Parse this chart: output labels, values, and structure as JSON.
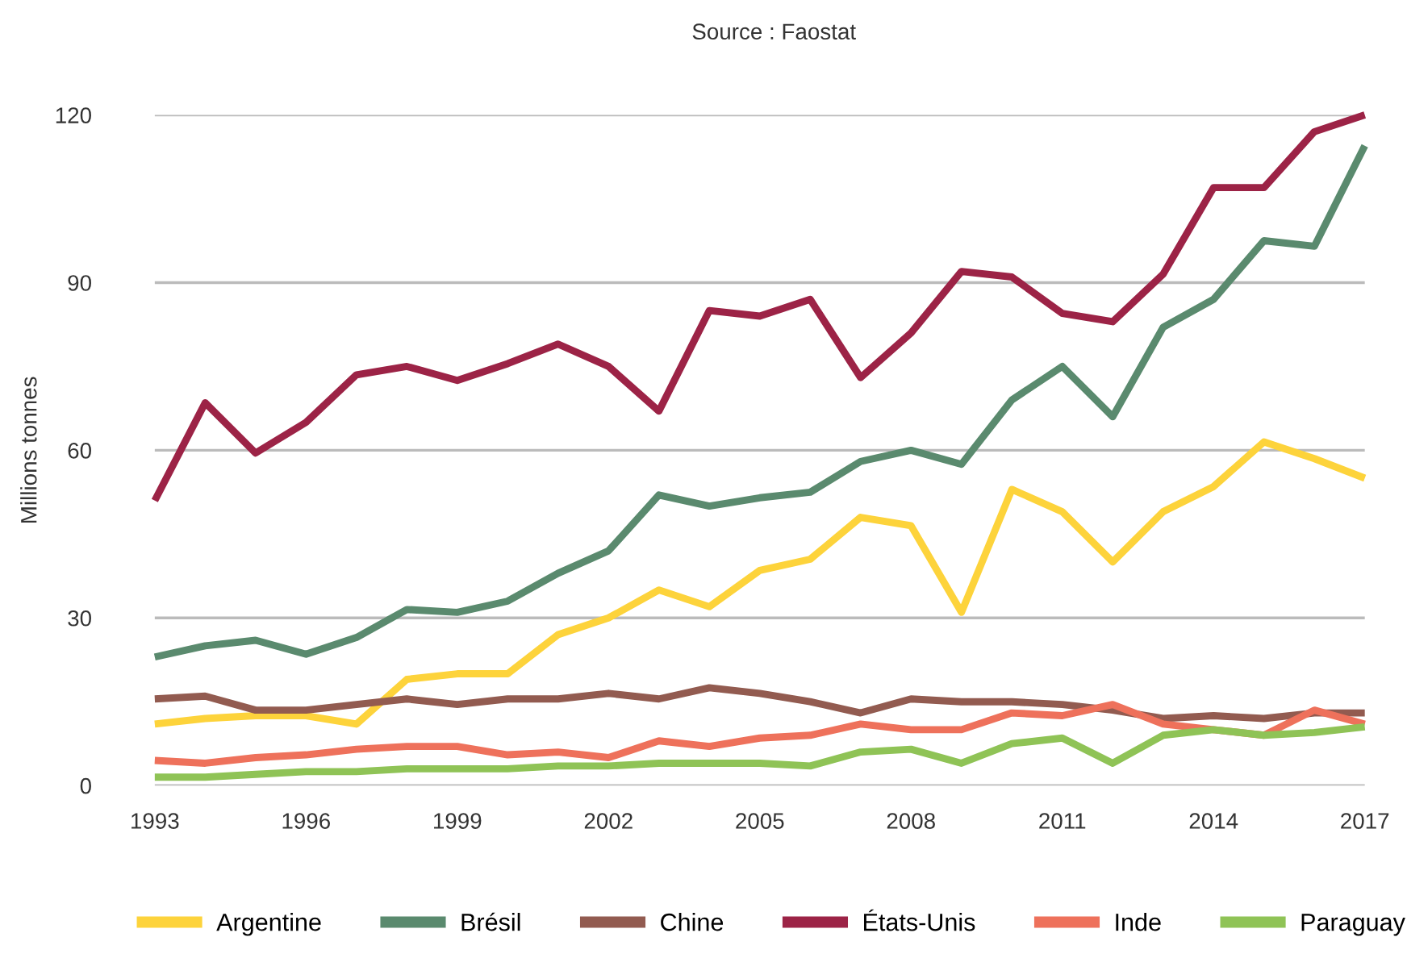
{
  "chart_data": {
    "type": "line",
    "annotations": [
      "Source : Faostat"
    ],
    "ylabel": "Millions tonnes",
    "x": [
      1993,
      1994,
      1995,
      1996,
      1997,
      1998,
      1999,
      2000,
      2001,
      2002,
      2003,
      2004,
      2005,
      2006,
      2007,
      2008,
      2009,
      2010,
      2011,
      2012,
      2013,
      2014,
      2015,
      2016,
      2017
    ],
    "series": [
      {
        "name": "Argentine",
        "color": "#fdd33b",
        "values": [
          11,
          12,
          12.5,
          12.5,
          11,
          19,
          20,
          20,
          27,
          30,
          35,
          32,
          38.5,
          40.5,
          48,
          46.5,
          31,
          53,
          49,
          40,
          49,
          53.5,
          61.5,
          58.5,
          55
        ]
      },
      {
        "name": "Brésil",
        "color": "#5a8a6e",
        "values": [
          23,
          25,
          26,
          23.5,
          26.5,
          31.5,
          31,
          33,
          38,
          42,
          52,
          50,
          51.5,
          52.5,
          58,
          60,
          57.5,
          69,
          75,
          66,
          82,
          87,
          97.5,
          96.5,
          114.5
        ]
      },
      {
        "name": "Chine",
        "color": "#925b50",
        "values": [
          15.5,
          16,
          13.5,
          13.5,
          14.5,
          15.5,
          14.5,
          15.5,
          15.5,
          16.5,
          15.5,
          17.5,
          16.5,
          15,
          13,
          15.5,
          15,
          15,
          14.5,
          13.5,
          12,
          12.5,
          12,
          13,
          13
        ]
      },
      {
        "name": "États-Unis",
        "color": "#9c2346",
        "values": [
          51,
          68.5,
          59.5,
          65,
          73.5,
          75,
          72.5,
          75.5,
          79,
          75,
          67,
          85,
          84,
          87,
          73,
          81,
          92,
          91,
          84.5,
          83,
          91.5,
          107,
          107,
          117,
          120
        ]
      },
      {
        "name": "Inde",
        "color": "#ee715b",
        "values": [
          4.5,
          4,
          5,
          5.5,
          6.5,
          7,
          7,
          5.5,
          6,
          5,
          8,
          7,
          8.5,
          9,
          11,
          10,
          10,
          13,
          12.5,
          14.5,
          11,
          10,
          9,
          13.5,
          11
        ]
      },
      {
        "name": "Paraguay",
        "color": "#8fc356",
        "values": [
          1.5,
          1.5,
          2,
          2.5,
          2.5,
          3,
          3,
          3,
          3.5,
          3.5,
          4,
          4,
          4,
          3.5,
          6,
          6.5,
          4,
          7.5,
          8.5,
          4,
          9,
          10,
          9,
          9.5,
          10.5
        ]
      }
    ],
    "xlim": [
      1993,
      2017
    ],
    "xticks": [
      1993,
      1996,
      1999,
      2002,
      2005,
      2008,
      2011,
      2014,
      2017
    ],
    "ylim": [
      0,
      120
    ],
    "yticks": [
      0,
      30,
      60,
      90,
      120
    ],
    "grid": "y",
    "legend": "bottom",
    "line_style": "solid"
  }
}
